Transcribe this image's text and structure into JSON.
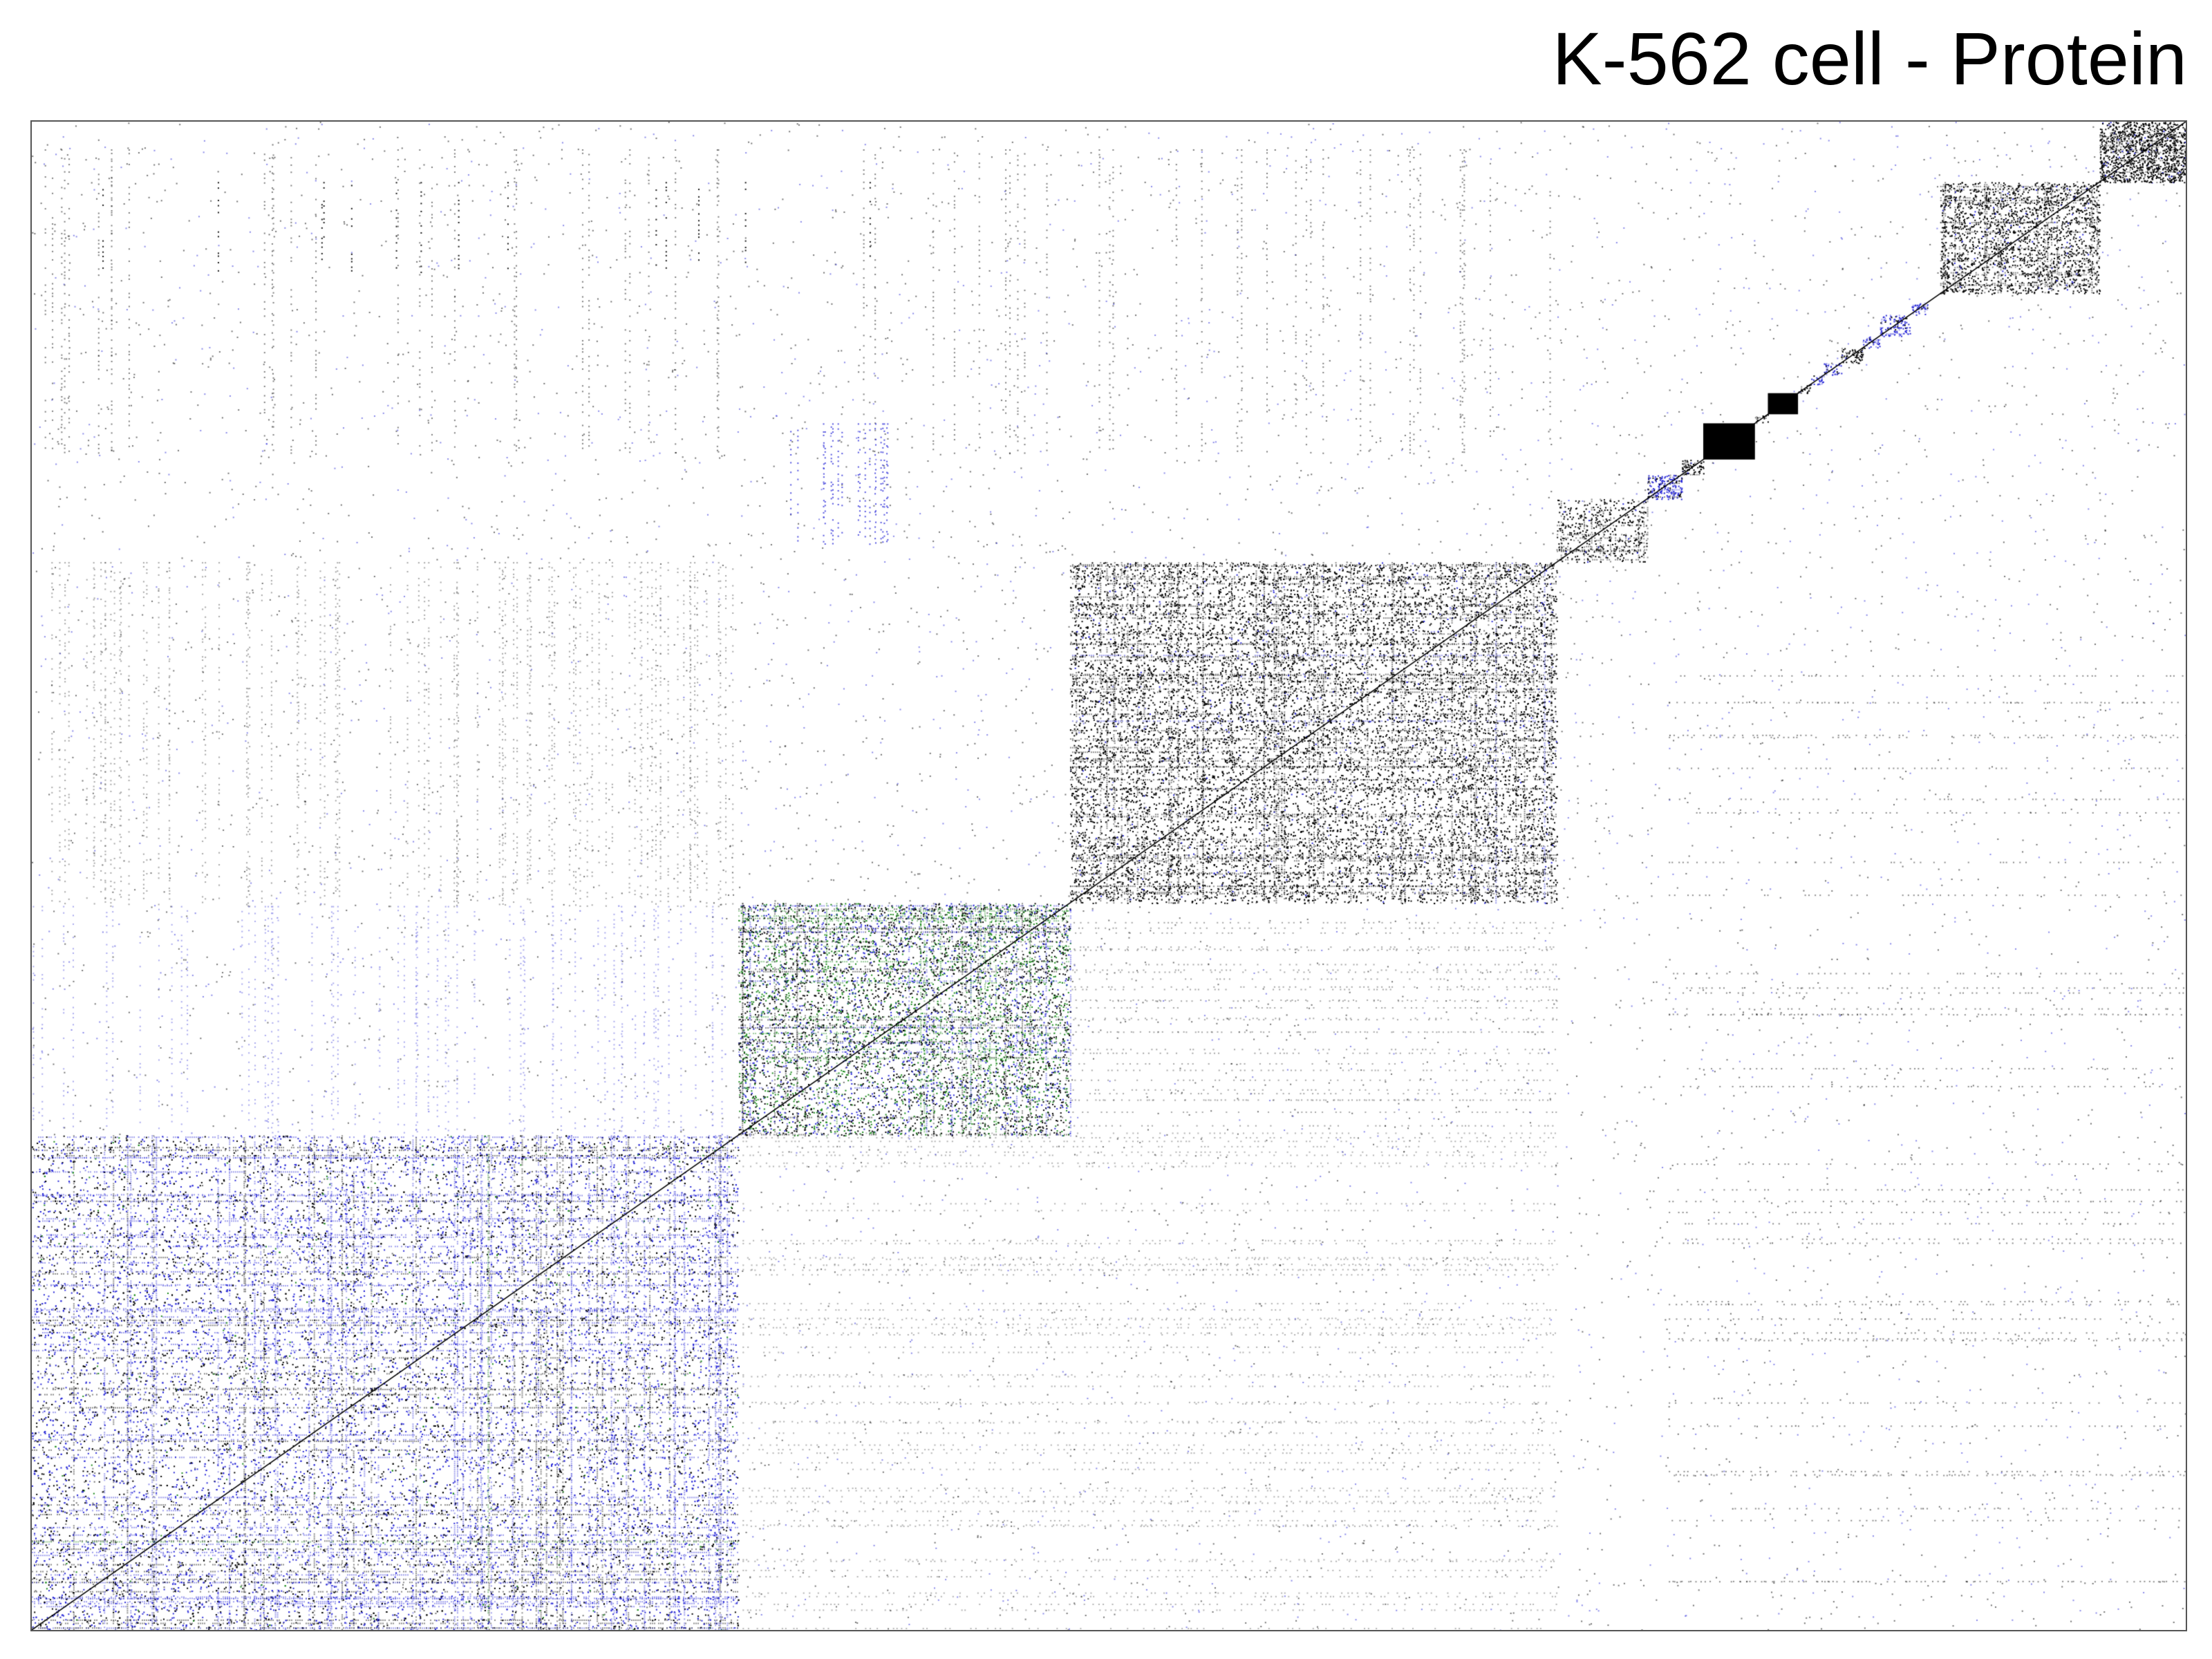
{
  "chart_data": {
    "type": "heatmap",
    "title": "K-562 cell - Protein",
    "xlabel": "",
    "ylabel": "",
    "matrix": "symmetric interaction matrix ordered into diagonal clusters",
    "axis_range": [
      0,
      1
    ],
    "grid": false,
    "legend": "none",
    "colors": {
      "default": "#000000",
      "secondary": "#2a2ad8",
      "tertiary": "#1a8a1a",
      "frame": "#555555",
      "background": "#ffffff"
    },
    "clusters": [
      {
        "start": 0.0,
        "end": 0.328,
        "density": 0.16,
        "color": "mixed-blue"
      },
      {
        "start": 0.328,
        "end": 0.482,
        "density": 0.34,
        "color": "mixed-green"
      },
      {
        "start": 0.482,
        "end": 0.708,
        "density": 0.3,
        "color": "black"
      },
      {
        "start": 0.708,
        "end": 0.75,
        "density": 0.28,
        "color": "black"
      },
      {
        "start": 0.75,
        "end": 0.766,
        "density": 0.8,
        "color": "blue"
      },
      {
        "start": 0.766,
        "end": 0.776,
        "density": 0.8,
        "color": "black"
      },
      {
        "start": 0.776,
        "end": 0.8,
        "density": 1.0,
        "color": "black"
      },
      {
        "start": 0.8,
        "end": 0.806,
        "density": 0.4,
        "color": "black"
      },
      {
        "start": 0.806,
        "end": 0.82,
        "density": 1.0,
        "color": "black"
      },
      {
        "start": 0.82,
        "end": 0.826,
        "density": 0.5,
        "color": "black"
      },
      {
        "start": 0.826,
        "end": 0.832,
        "density": 0.6,
        "color": "blue"
      },
      {
        "start": 0.832,
        "end": 0.84,
        "density": 0.6,
        "color": "blue"
      },
      {
        "start": 0.84,
        "end": 0.85,
        "density": 0.7,
        "color": "black"
      },
      {
        "start": 0.85,
        "end": 0.858,
        "density": 0.6,
        "color": "blue"
      },
      {
        "start": 0.858,
        "end": 0.872,
        "density": 0.6,
        "color": "blue"
      },
      {
        "start": 0.872,
        "end": 0.88,
        "density": 0.6,
        "color": "blue"
      },
      {
        "start": 0.886,
        "end": 0.96,
        "density": 0.45,
        "color": "black"
      },
      {
        "start": 0.96,
        "end": 1.0,
        "density": 0.9,
        "color": "black"
      }
    ]
  }
}
